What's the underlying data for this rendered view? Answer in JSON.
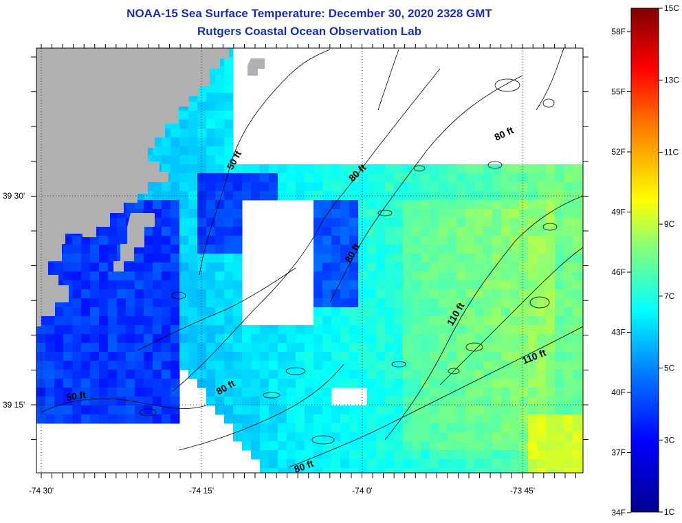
{
  "header": {
    "title": "NOAA-15 Sea Surface Temperature:  December 30, 2020 2328 GMT",
    "subtitle": "Rutgers Coastal Ocean Observation Lab"
  },
  "axes": {
    "x_ticks": [
      "-74 30'",
      "-74 15'",
      "-74 0'",
      "-73 45'"
    ],
    "y_ticks": [
      "39 30'",
      "39 15'"
    ]
  },
  "colorbar": {
    "celsius_labels": [
      "15C",
      "13C",
      "11C",
      "9C",
      "7C",
      "5C",
      "3C",
      "1C"
    ],
    "fahrenheit_labels": [
      "58F",
      "55F",
      "52F",
      "49F",
      "46F",
      "43F",
      "40F",
      "37F",
      "34F"
    ]
  },
  "contours": {
    "labels": [
      "50 ft",
      "80 ft",
      "80 ft",
      "80 ft",
      "110 ft",
      "110 ft",
      "50 ft",
      "80 ft",
      "80 ft"
    ]
  },
  "colors": {
    "land": "#b0b0b0",
    "title": "#1a2eb0",
    "contour": "#000000"
  }
}
